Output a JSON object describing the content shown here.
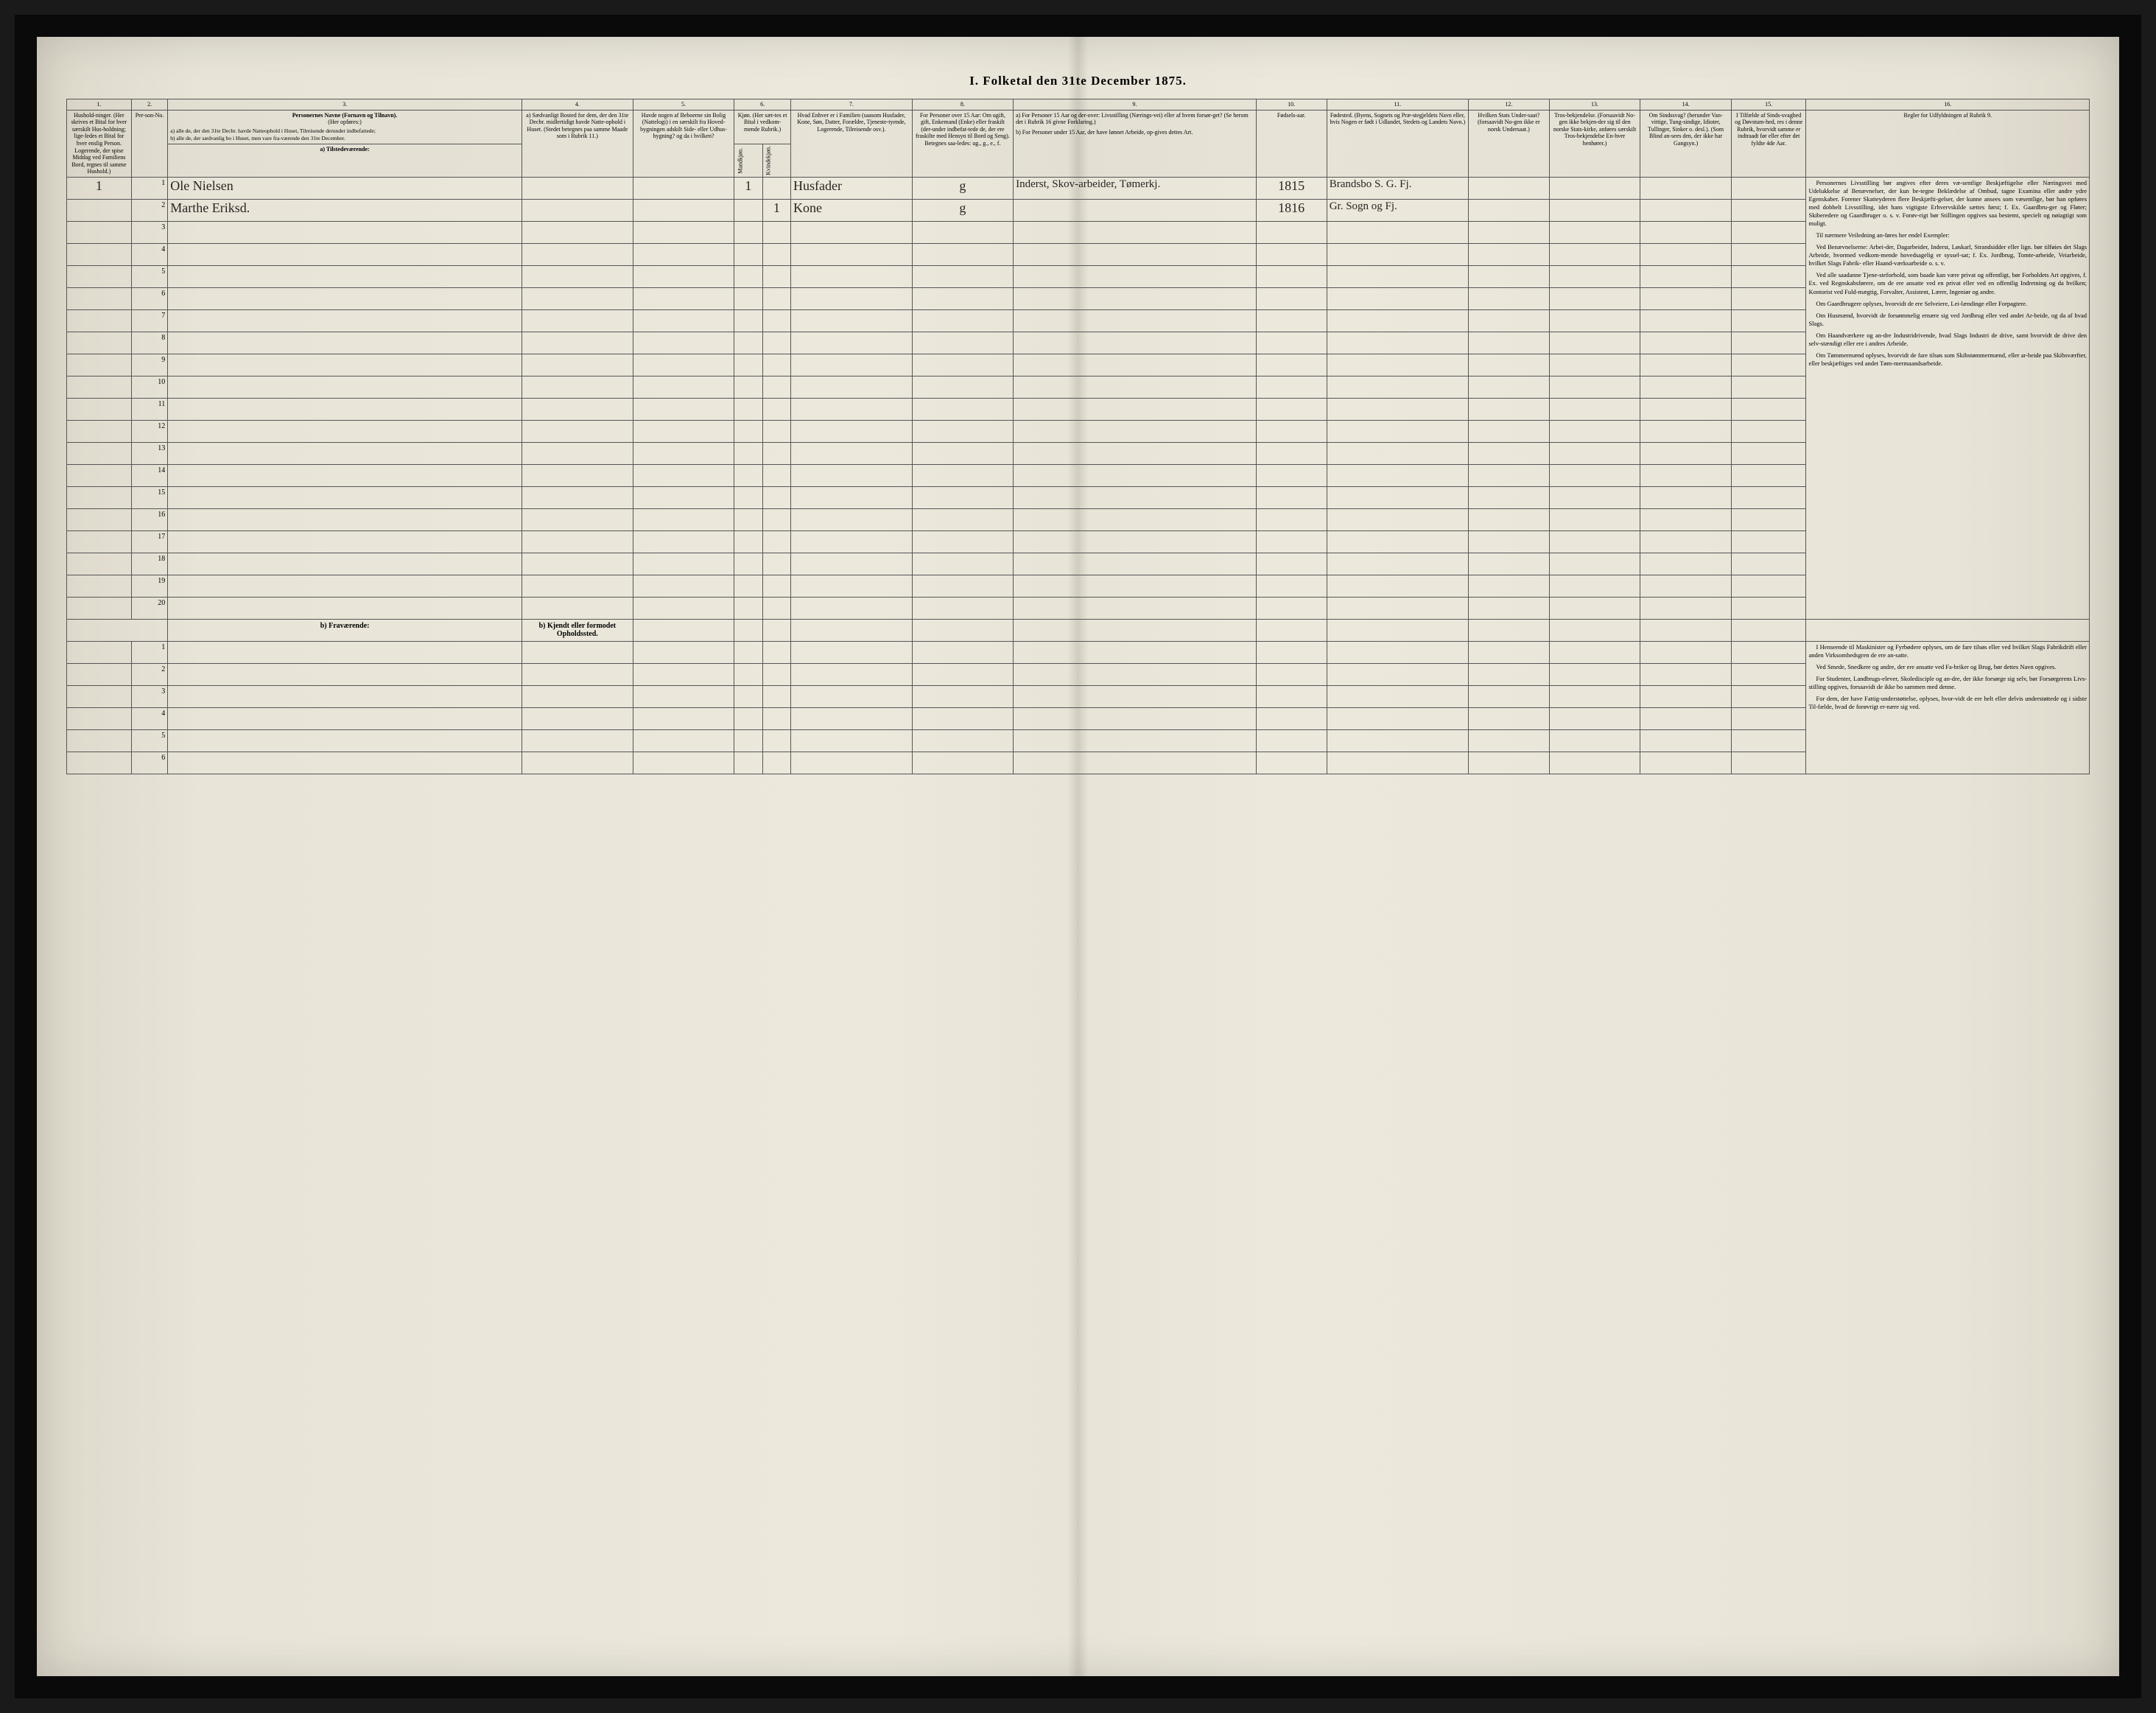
{
  "title": "I. Folketal den 31te December 1875.",
  "columns": {
    "c1": "1.",
    "c2": "2.",
    "c3": "3.",
    "c4": "4.",
    "c5": "5.",
    "c6": "6.",
    "c7": "7.",
    "c8": "8.",
    "c9": "9.",
    "c10": "10.",
    "c11": "11.",
    "c12": "12.",
    "c13": "13.",
    "c14": "14.",
    "c15": "15.",
    "c16": "16."
  },
  "headers": {
    "h1": "Hushold-ninger. (Her skrives et Bital for hver særskilt Hus-holdning; lige-ledes et Bital for hver enslig Person. Logerende, der spise Middag ved Familiens Bord, regnes til samme Hushold.)",
    "h2": "Per-son-No.",
    "h3_title": "Personernes Navne (Fornavn og Tilnavn).",
    "h3_sub": "(Her opføres:)",
    "h3_a": "a) alle de, der den 31te Decbr. havde Natteophold i Huset, Tilreisende derunder indbefattede;",
    "h3_b": "b) alle de, der sædvanlig bo i Huset, men vare fra-værende den 31te December.",
    "h4": "a) Sædvanligt Bosted for dem, der den 31te Decbr. midlertidigt havde Natte-ophold i Huset. (Stedet betegnes paa samme Maade som i Rubrik 11.)",
    "h5": "Havde nogen af Beboerne sin Bolig (Nattelogi) i en særskilt fra Hoved-bygningen adskilt Side- eller Udhus-bygning? og da i hvilken?",
    "h6": "Kjøn. (Her sæt-tes et Bital i vedkom-mende Rubrik.)",
    "h6a": "Mandkjøn.",
    "h6b": "Kvindekjøn.",
    "h7": "Hvad Enhver er i Familien (saasom Husfader, Kone, Søn, Datter, Forældre, Tjeneste-tyende, Logerende, Tilreisende osv.).",
    "h8": "For Personer over 15 Aar: Om ugift, gift, Enkemand (Enke) eller fraskilt (der-under indbefat-tede de, der ere fraskilte med Hensyn til Bord og Seng). Betegnes saa-ledes: ug., g., e., f.",
    "h9_a": "a) For Personer 15 Aar og der-over: Livsstilling (Nærings-vei) eller af hvem forsør-get? (Se herom det i Rubrik 16 givne Forklaring.)",
    "h9_b": "b) For Personer under 15 Aar, der have lønnet Arbeide, op-gives dettes Art.",
    "h10": "Fødsels-aar.",
    "h11": "Fødested. (Byens, Sognets og Præ-stegjeldets Navn eller, hvis Nogen er født i Udlandet, Stedets og Landets Navn.)",
    "h12": "Hvilken Stats Under-saat? (forsaavidt No-gen ikke er norsk Undersaat.)",
    "h13": "Tros-bekjendelse. (Forsaavidt No-gen ikke bekjen-der sig til den norske Stats-kirke, anføres særskilt Tros-bekjendelse En-hver henhører.)",
    "h14": "Om Sindssvag? (herunder Van-vittige, Tung-sindige, Idioter, Tullinger, Sinker o. desl.). (Som Blind an-sees den, der ikke har Gangsyn.)",
    "h15": "I Tilfælde af Sinds-svaghed og Døvstum-hed, res i denne Rubrik, hvorvidt samme er indtraadt før eller efter det fyldte 4de Aar.",
    "h16": "Regler for Udfyldningen af Rubrik 9."
  },
  "section_a": "a) Tilstedeværende:",
  "section_b": "b) Fraværende:",
  "section_b_col4": "b) Kjendt eller formodet Opholdssted.",
  "rows": [
    {
      "n": "1",
      "hh": "1",
      "name": "Ole Nielsen",
      "mk": "1",
      "kk": "",
      "role": "Husfader",
      "civ": "g",
      "occ": "Inderst, Skov-arbeider, Tømerkj.",
      "year": "1815",
      "place": "Brandsbo S. G. Fj."
    },
    {
      "n": "2",
      "hh": "",
      "name": "Marthe Eriksd.",
      "mk": "",
      "kk": "1",
      "role": "Kone",
      "civ": "g",
      "occ": "",
      "year": "1816",
      "place": "Gr. Sogn og Fj."
    },
    {
      "n": "3"
    },
    {
      "n": "4"
    },
    {
      "n": "5"
    },
    {
      "n": "6"
    },
    {
      "n": "7"
    },
    {
      "n": "8"
    },
    {
      "n": "9"
    },
    {
      "n": "10"
    },
    {
      "n": "11"
    },
    {
      "n": "12"
    },
    {
      "n": "13"
    },
    {
      "n": "14"
    },
    {
      "n": "15"
    },
    {
      "n": "16"
    },
    {
      "n": "17"
    },
    {
      "n": "18"
    },
    {
      "n": "19"
    },
    {
      "n": "20"
    }
  ],
  "absent_rows": [
    {
      "n": "1"
    },
    {
      "n": "2"
    },
    {
      "n": "3"
    },
    {
      "n": "4"
    },
    {
      "n": "5"
    },
    {
      "n": "6"
    }
  ],
  "instructions": {
    "p1": "Personernes Livsstilling bør angives efter deres væ-sentlige Beskjæftigelse eller Næringsvei med Udelukkelse af Benævnelser, der kun be-tegne Beklædelse af Ombud, tagne Examina eller andre ydre Egenskaber. Forener Skatteyderen flere Beskjæfti-gelser, der kunne ansees som væsentlige, bør han opføres med dobbelt Livsstilling, idet hans vigtigste Erhvervskilde sættes først; f. Ex. Gaardbru-ger og Fløter; Skiberedere og Gaardbruger o. s. v. Forøv-rigt bør Stillingen opgives saa bestemt, specielt og nøiagtigt som muligt.",
    "p2": "Til nærmere Veiledning an-føres her endel Exempler:",
    "p3": "Ved Benævnelserne: Arbei-der, Dagarbeider, Inderst, Løskarl, Strandsidder eller lign. bør tilføies det Slags Arbeide, hvormed vedkom-mende hovedsagelig er syssel-sat; f. Ex. Jordbrug, Tomte-arbeide, Veiarbeide, hvilket Slags Fabrik- eller Haand-værksarbeide o. s. v.",
    "p4": "Ved alle saadanne Tjene-steforhold, som baade kan være privat og offentligt, bør Forholdets Art opgives, f. Ex. ved Regnskabsførere, om de ere ansatte ved en privat eller ved en offentlig Indretning og da hvilken; Kontorist ved Fuld-mægtig, Forvalter, Assistent, Lærer, Ingeniør og andre.",
    "p5": "Om Gaardbrugere oplyses, hvorvidt de ere Selveiere, Lei-lændinge eller Forpagtere.",
    "p6": "Om Husmænd, hvorvidt de forsømmelig ernære sig ved Jordbrug eller ved andet Ar-beide, og da af hvad Slags.",
    "p7": "Om Haandværkere og an-dre Industridrivende, hvad Slags Industri de drive, samt hvorvidt de drive den selv-stændigt eller ere i andres Arbeide.",
    "p8": "Om Tømmermænd oplyses, hvorvidt de fare tilsøs som Skibstømmermænd, eller ar-beide paa Skibsværfter, eller beskjæftiges ved andet Tøm-mermaandsarbeide.",
    "p9": "I Henseende til Maskinister og Fyrbødere oplyses, om de fare tilsøs eller ved hvilket Slags Fabrikdrift eller anden Virksomhedsgren de ere an-satte.",
    "p10": "Ved Smede, Snedkere og andre, der ere ansatte ved Fa-briker og Brug, bør dettes Navn opgives.",
    "p11": "For Studenter, Landbrugs-elever, Skoledisciple og an-dre, der ikke forsørge sig selv, bør Forsørgerens Livs-stilling opgives, forsaavidt de ikke bo sammen med denne.",
    "p12": "For dem, der have Fattig-understøttelse, oplyses, hvor-vidt de ere helt eller delvis understøttede og i sidste Til-fælde, hvad de forøvrigt er-nære sig ved."
  },
  "colors": {
    "paper": "#e8e4d8",
    "ink": "#2a2420",
    "rule": "#555555",
    "frame": "#0a0a0a"
  },
  "colwidths_pct": [
    3.2,
    1.8,
    17.5,
    5.5,
    5.0,
    1.4,
    1.4,
    6.0,
    5.0,
    12.0,
    3.5,
    7.0,
    4.0,
    4.5,
    4.5,
    3.7,
    14.0
  ]
}
